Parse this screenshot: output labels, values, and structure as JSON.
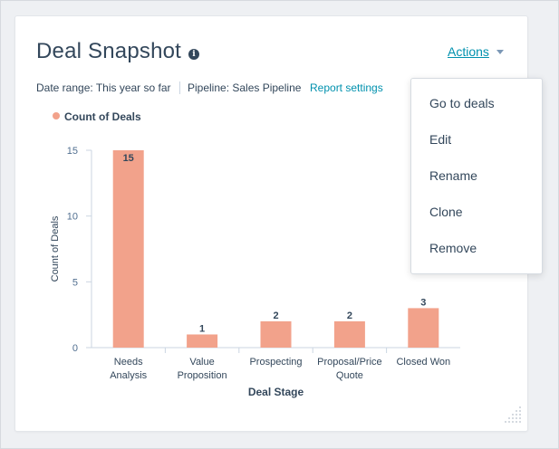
{
  "header": {
    "title": "Deal Snapshot",
    "info_icon": "i",
    "actions_label": "Actions"
  },
  "meta": {
    "date_range": "Date range: This year so far",
    "pipeline": "Pipeline: Sales Pipeline",
    "report_settings": "Report settings"
  },
  "legend": {
    "label": "Count of Deals"
  },
  "menu": {
    "items": [
      "Go to deals",
      "Edit",
      "Rename",
      "Clone",
      "Remove"
    ]
  },
  "colors": {
    "bar": "#f2a28b",
    "accent": "#0091ae",
    "text": "#33475b"
  },
  "icons": [
    "info-icon",
    "caret-down-icon",
    "resize-handle-icon"
  ],
  "chart_data": {
    "type": "bar",
    "categories": [
      [
        "Needs",
        "Analysis"
      ],
      [
        "Value",
        "Proposition"
      ],
      [
        "Prospecting"
      ],
      [
        "Proposal/Price",
        "Quote"
      ],
      [
        "Closed Won"
      ]
    ],
    "series": [
      {
        "name": "Count of Deals",
        "values": [
          15,
          1,
          2,
          2,
          3
        ]
      }
    ],
    "data_labels": [
      "15",
      "1",
      "2",
      "2",
      "3"
    ],
    "xlabel": "Deal Stage",
    "ylabel": "Count of Deals",
    "yticks": [
      "0",
      "5",
      "10",
      "15"
    ],
    "ylim": [
      0,
      15
    ],
    "grid": false,
    "legend_position": "top-left"
  }
}
